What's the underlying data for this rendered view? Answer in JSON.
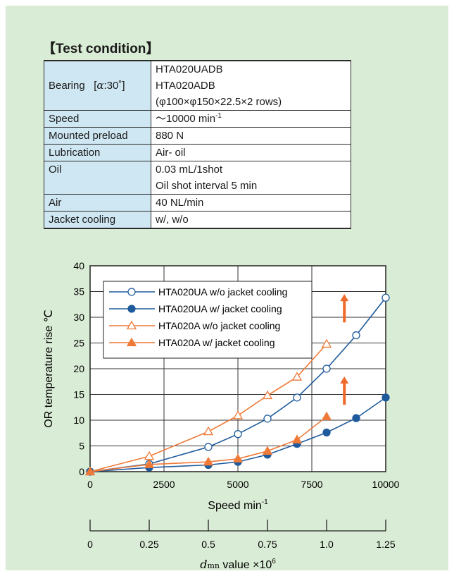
{
  "heading": "【Test condition】",
  "conditions": {
    "bearing": {
      "label_prefix": "Bearing   [",
      "label_alpha": "α",
      "label_suffix": ":30˚]",
      "values": [
        "HTA020UADB",
        "HTA020ADB",
        "(φ100×φ150×22.5×2 rows)"
      ]
    },
    "speed": {
      "label": "Speed",
      "value": "～10000 min",
      "sup": "-1"
    },
    "preload": {
      "label": "Mounted preload",
      "value": "880 N"
    },
    "lubrication": {
      "label": "Lubrication",
      "value": "Air- oil"
    },
    "oil": {
      "label": "Oil",
      "values": [
        "0.03 mL/1shot",
        "Oil shot interval 5 min"
      ]
    },
    "air": {
      "label": "Air",
      "value": "40 NL/min"
    },
    "jacket": {
      "label": "Jacket cooling",
      "value": "w/, w/o"
    }
  },
  "colors": {
    "panel": "#d9ecd5",
    "blue": "#1f5b9c",
    "orange": "#ef7a38",
    "arrow": "#ef6a2a",
    "label_cell": "#cfe7f2"
  },
  "chart_data": {
    "type": "line",
    "x": [
      0,
      2000,
      4000,
      5000,
      6000,
      7000,
      8000,
      9000,
      10000
    ],
    "xlim": [
      0,
      10000
    ],
    "ylim": [
      0,
      40
    ],
    "xticks": [
      "0",
      "2500",
      "5000",
      "7500",
      "10000"
    ],
    "yticks": [
      "0",
      "5",
      "10",
      "15",
      "20",
      "25",
      "30",
      "35",
      "40"
    ],
    "xlabel": "Speed",
    "xlabel_unit": "min",
    "xlabel_sup": "-1",
    "ylabel": "OR temperature rise",
    "ylabel_unit": "℃",
    "grid": true,
    "legend_position": "top-left",
    "series": [
      {
        "name": "HTA020UA w/o jacket cooling",
        "color": "#1f5b9c",
        "marker": "circle-open",
        "points": [
          [
            0,
            0
          ],
          [
            2000,
            1.5
          ],
          [
            4000,
            4.8
          ],
          [
            5000,
            7.3
          ],
          [
            6000,
            10.3
          ],
          [
            7000,
            14.4
          ],
          [
            8000,
            20
          ],
          [
            9000,
            26.5
          ],
          [
            10000,
            33.8
          ]
        ]
      },
      {
        "name": "HTA020UA w/ jacket cooling",
        "color": "#1f5b9c",
        "marker": "circle-filled",
        "points": [
          [
            0,
            0
          ],
          [
            2000,
            0.8
          ],
          [
            4000,
            1.3
          ],
          [
            5000,
            1.9
          ],
          [
            6000,
            3.3
          ],
          [
            7000,
            5.4
          ],
          [
            8000,
            7.6
          ],
          [
            9000,
            10.4
          ],
          [
            10000,
            14.4
          ]
        ]
      },
      {
        "name": "HTA020A w/o jacket cooling",
        "color": "#ef7a38",
        "marker": "triangle-open",
        "points": [
          [
            0,
            0
          ],
          [
            2000,
            3
          ],
          [
            4000,
            7.8
          ],
          [
            5000,
            10.9
          ],
          [
            6000,
            14.8
          ],
          [
            7000,
            18.4
          ],
          [
            8000,
            24.8
          ]
        ]
      },
      {
        "name": "HTA020A w/ jacket cooling",
        "color": "#ef7a38",
        "marker": "triangle-filled",
        "points": [
          [
            0,
            0
          ],
          [
            2000,
            1.4
          ],
          [
            4000,
            1.9
          ],
          [
            5000,
            2.5
          ],
          [
            6000,
            4
          ],
          [
            7000,
            6.2
          ],
          [
            8000,
            10.7
          ]
        ]
      }
    ],
    "arrows": [
      {
        "x": 8600,
        "y_from": 29,
        "y_to": 34.5
      },
      {
        "x": 8600,
        "y_from": 13,
        "y_to": 18.5
      }
    ],
    "secondary_axis": {
      "label": "dmn value ×10",
      "label_d": "d",
      "label_mn": "mn",
      "label_rest": " value ×10",
      "label_sup": "6",
      "ticks": [
        "0",
        "0.25",
        "0.5",
        "0.75",
        "1.0",
        "1.25"
      ],
      "tick_values": [
        0,
        0.25,
        0.5,
        0.75,
        1.0,
        1.25
      ],
      "range": [
        0,
        1.25
      ]
    }
  }
}
